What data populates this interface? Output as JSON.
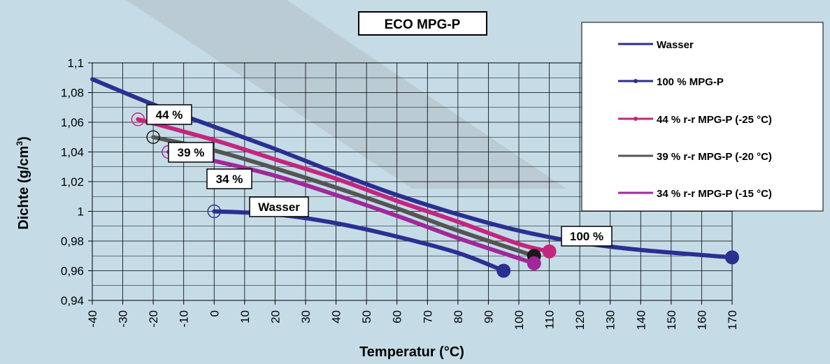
{
  "chart_data": {
    "type": "line",
    "title": "ECO MPG-P",
    "xlabel": "Temperatur (°C)",
    "ylabel_main": "Dichte (g/cm",
    "ylabel_sup": "3",
    "ylabel_close": ")",
    "xlim": [
      -40,
      170
    ],
    "ylim": [
      0.94,
      1.1
    ],
    "grid": true,
    "legend_position": "top-right",
    "x_ticks": [
      "-40",
      "-30",
      "-20",
      "-10",
      "0",
      "10",
      "20",
      "30",
      "40",
      "50",
      "60",
      "70",
      "80",
      "90",
      "100",
      "110",
      "120",
      "130",
      "140",
      "150",
      "160",
      "170"
    ],
    "y_ticks": [
      "0,94",
      "0,96",
      "0,98",
      "1",
      "1,02",
      "1,04",
      "1,06",
      "1,08",
      "1,1"
    ],
    "series": [
      {
        "name": "Wasser",
        "color": "#2b2f91",
        "points": [
          [
            0,
            1.0
          ],
          [
            20,
            0.998
          ],
          [
            40,
            0.992
          ],
          [
            60,
            0.983
          ],
          [
            80,
            0.972
          ],
          [
            95,
            0.96
          ]
        ],
        "start_marker": "open",
        "end_marker": "filled",
        "tag": "Wasser"
      },
      {
        "name": "100 % MPG-P",
        "color": "#2b2f91",
        "points": [
          [
            -40,
            1.089
          ],
          [
            -20,
            1.072
          ],
          [
            0,
            1.057
          ],
          [
            20,
            1.042
          ],
          [
            40,
            1.026
          ],
          [
            60,
            1.011
          ],
          [
            80,
            0.998
          ],
          [
            100,
            0.987
          ],
          [
            120,
            0.979
          ],
          [
            140,
            0.974
          ],
          [
            170,
            0.969
          ]
        ],
        "start_marker": "none",
        "end_marker": "filled",
        "tag": "100 %"
      },
      {
        "name": "44 % r-r MPG-P (-25 °C)",
        "color": "#c4257f",
        "points": [
          [
            -25,
            1.062
          ],
          [
            0,
            1.048
          ],
          [
            20,
            1.035
          ],
          [
            40,
            1.022
          ],
          [
            60,
            1.007
          ],
          [
            80,
            0.993
          ],
          [
            100,
            0.978
          ],
          [
            110,
            0.973
          ]
        ],
        "start_marker": "open",
        "end_marker": "filled",
        "tag": "44 %"
      },
      {
        "name": "39 % r-r MPG-P (-20 °C)",
        "color": "#555555",
        "points": [
          [
            -20,
            1.05
          ],
          [
            0,
            1.041
          ],
          [
            20,
            1.029
          ],
          [
            40,
            1.016
          ],
          [
            60,
            1.002
          ],
          [
            80,
            0.987
          ],
          [
            105,
            0.97
          ]
        ],
        "start_marker": "open",
        "end_marker": "filled",
        "marker_color": "#1a1a1a",
        "tag": "39 %"
      },
      {
        "name": "34 % r-r MPG-P (-15 °C)",
        "color": "#a0289a",
        "points": [
          [
            -15,
            1.04
          ],
          [
            0,
            1.034
          ],
          [
            20,
            1.024
          ],
          [
            40,
            1.011
          ],
          [
            60,
            0.997
          ],
          [
            80,
            0.982
          ],
          [
            105,
            0.965
          ]
        ],
        "start_marker": "open",
        "end_marker": "filled",
        "tag": "34 %"
      }
    ]
  }
}
